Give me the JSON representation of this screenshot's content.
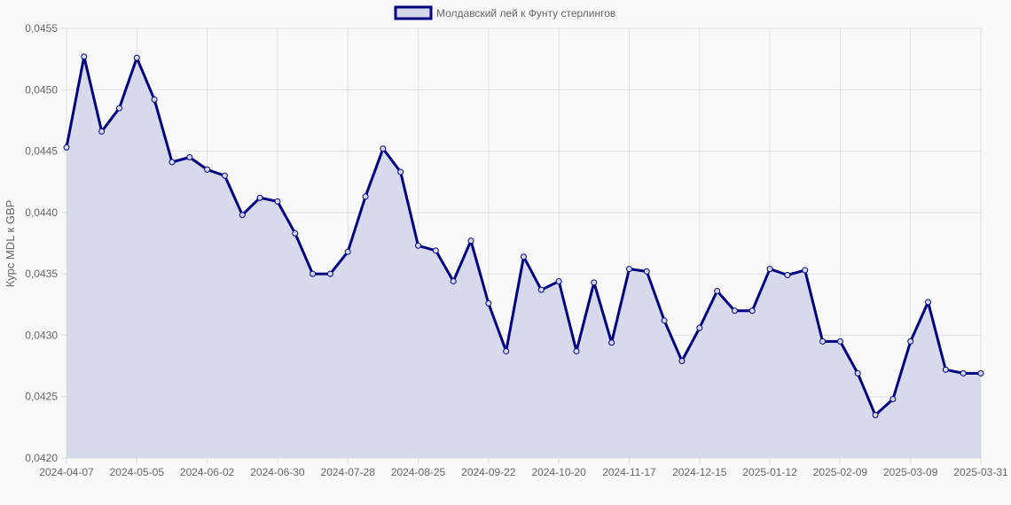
{
  "chart_data": {
    "type": "area",
    "title": "",
    "legend": {
      "label": "Молдавский лей к Фунту стерлингов",
      "position": "top"
    },
    "xlabel": "",
    "ylabel": "Курс MDL к GBP",
    "ylim": [
      0.042,
      0.0455
    ],
    "yticks": [
      "0,0420",
      "0,0425",
      "0,0430",
      "0,0435",
      "0,0440",
      "0,0445",
      "0,0450",
      "0,0455"
    ],
    "xtick_labels": [
      "2024-04-07",
      "2024-05-05",
      "2024-06-02",
      "2024-06-30",
      "2024-07-28",
      "2024-08-25",
      "2024-09-22",
      "2024-10-20",
      "2024-11-17",
      "2024-12-15",
      "2025-01-12",
      "2025-02-09",
      "2025-03-09",
      "2025-03-31"
    ],
    "grid": true,
    "colors": {
      "line": "#000080",
      "fill": "#d5d8eb"
    },
    "series": [
      {
        "name": "Молдавский лей к Фунту стерлингов",
        "values": [
          0.04453,
          0.04527,
          0.04466,
          0.04485,
          0.04526,
          0.04492,
          0.04441,
          0.04445,
          0.04435,
          0.0443,
          0.04398,
          0.04412,
          0.04409,
          0.04383,
          0.0435,
          0.0435,
          0.04368,
          0.04413,
          0.04452,
          0.04433,
          0.04373,
          0.04369,
          0.04344,
          0.04377,
          0.04326,
          0.04287,
          0.04364,
          0.04337,
          0.04344,
          0.04287,
          0.04343,
          0.04294,
          0.04354,
          0.04352,
          0.04312,
          0.04279,
          0.04306,
          0.04336,
          0.0432,
          0.0432,
          0.04354,
          0.04349,
          0.04353,
          0.04295,
          0.04295,
          0.04269,
          0.04235,
          0.04248,
          0.04295,
          0.04327,
          0.04272,
          0.04269,
          0.04269
        ]
      }
    ]
  }
}
